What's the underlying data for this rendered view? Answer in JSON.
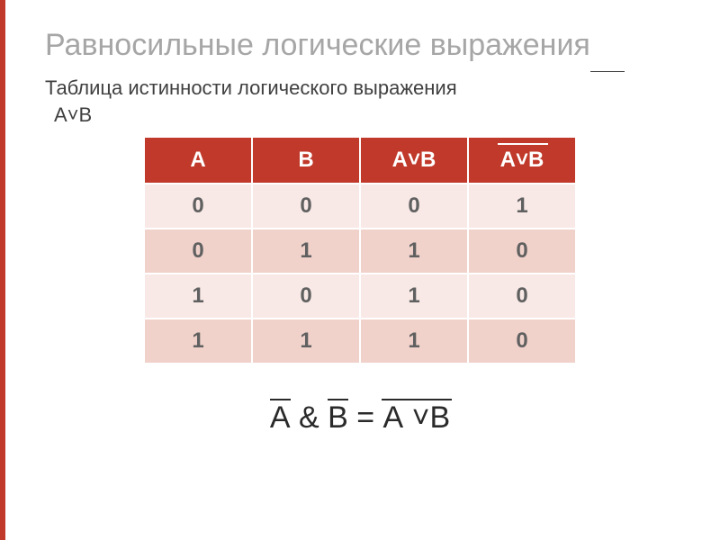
{
  "colors": {
    "title": "#a6a6a6",
    "subtitle": "#404040",
    "header_bg": "#c0392b",
    "row_light": "#f8e9e6",
    "row_dark": "#f1d2cb",
    "cell_text": "#606060",
    "accent_bar": "#c0392b"
  },
  "title": "Равносильные логические выражения",
  "subtitle_line1": "Таблица истинности логического выражения",
  "subtitle_line2": "А˅В",
  "table": {
    "headers": [
      "А",
      "В",
      "А˅В",
      "А˅В"
    ],
    "overline_col": 3,
    "rows": [
      [
        "0",
        "0",
        "0",
        "1"
      ],
      [
        "0",
        "1",
        "1",
        "0"
      ],
      [
        "1",
        "0",
        "1",
        "0"
      ],
      [
        "1",
        "1",
        "1",
        "0"
      ]
    ]
  },
  "formula": {
    "parts": [
      {
        "text": "А",
        "bar": true
      },
      {
        "text": " & ",
        "bar": false
      },
      {
        "text": "В",
        "bar": true
      },
      {
        "text": "  = ",
        "bar": false
      },
      {
        "text": "А ˅В",
        "bar": true,
        "wide": true
      }
    ]
  }
}
